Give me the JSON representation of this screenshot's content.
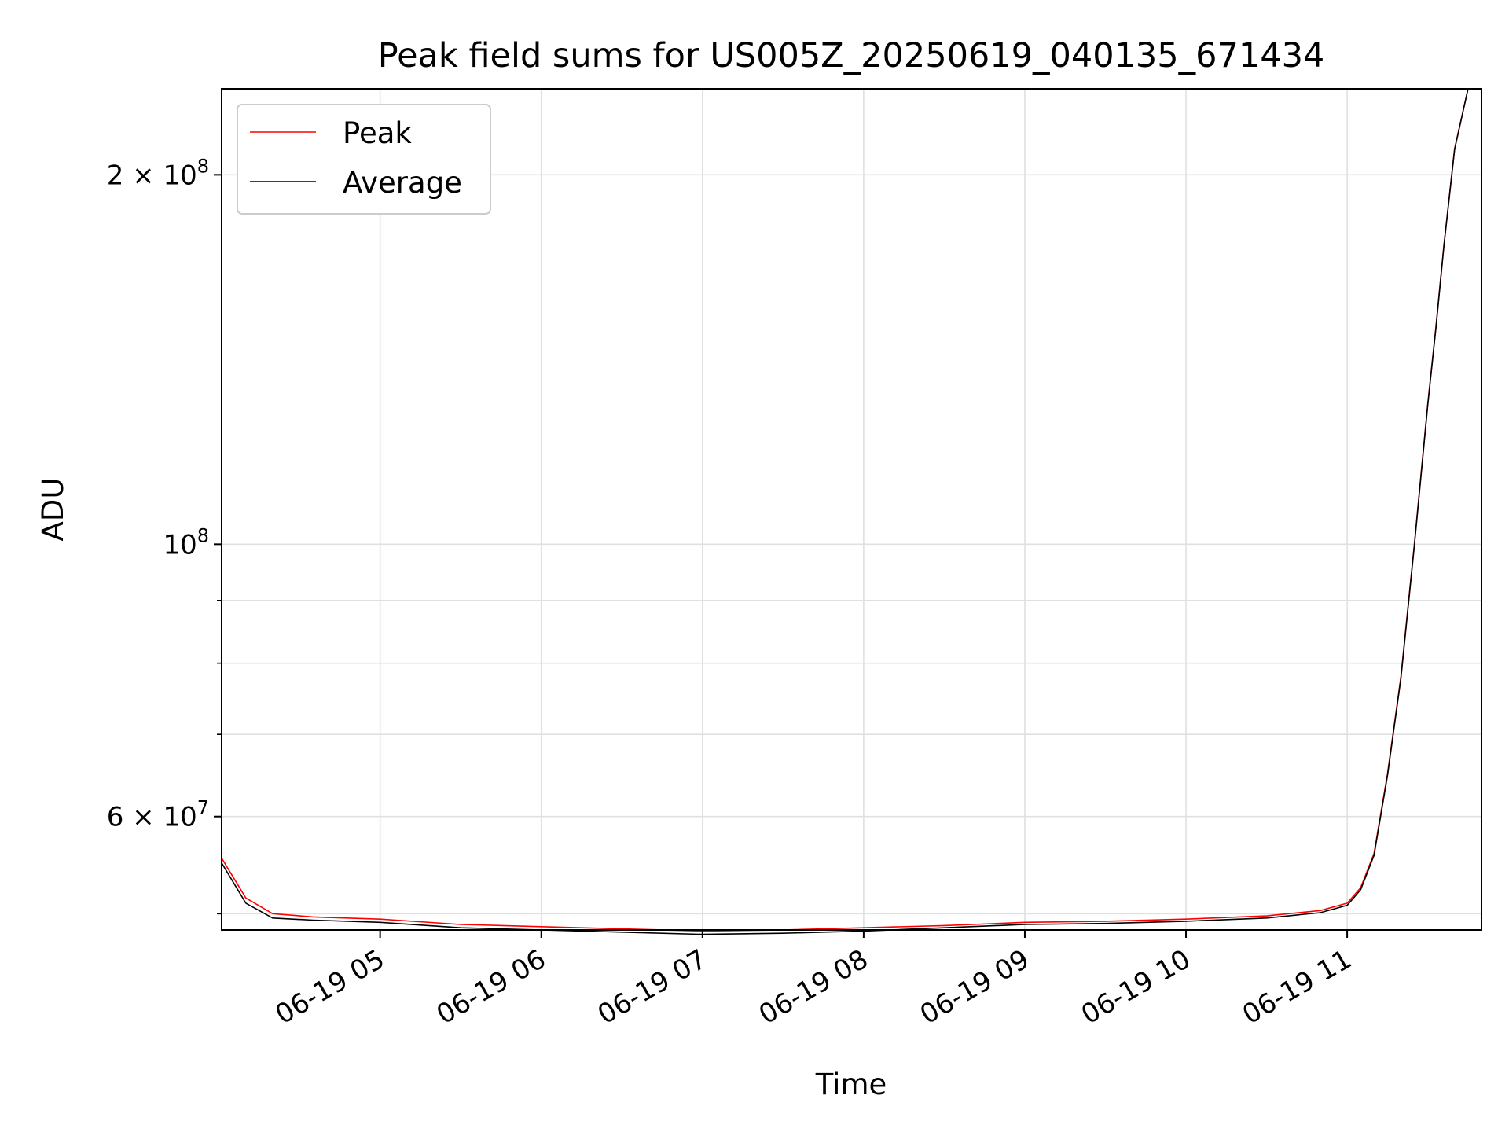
{
  "chart_data": {
    "type": "line",
    "title": "Peak field sums for US005Z_20250619_040135_671434",
    "xlabel": "Time",
    "ylabel": "ADU",
    "x_scale": "time",
    "y_scale": "log",
    "xlim": [
      "2025-06-19 04:01",
      "2025-06-19 11:50"
    ],
    "ylim": [
      48500000,
      235000000
    ],
    "grid": true,
    "legend_position": "upper-left",
    "x_ticks": [
      {
        "t": "2025-06-19 05:00",
        "label": "06-19 05"
      },
      {
        "t": "2025-06-19 06:00",
        "label": "06-19 06"
      },
      {
        "t": "2025-06-19 07:00",
        "label": "06-19 07"
      },
      {
        "t": "2025-06-19 08:00",
        "label": "06-19 08"
      },
      {
        "t": "2025-06-19 09:00",
        "label": "06-19 09"
      },
      {
        "t": "2025-06-19 10:00",
        "label": "06-19 10"
      },
      {
        "t": "2025-06-19 11:00",
        "label": "06-19 11"
      }
    ],
    "y_ticks_major": [
      {
        "value": 60000000,
        "base": "6 × 10",
        "exp": "7"
      },
      {
        "value": 100000000,
        "base": "10",
        "exp": "8"
      },
      {
        "value": 200000000,
        "base": "2 × 10",
        "exp": "8"
      }
    ],
    "y_ticks_minor": [
      50000000,
      70000000,
      80000000,
      90000000,
      300000000
    ],
    "series": [
      {
        "name": "Peak",
        "color": "#ff0000",
        "x": [
          "2025-06-19 04:01",
          "2025-06-19 04:10",
          "2025-06-19 04:20",
          "2025-06-19 04:35",
          "2025-06-19 05:00",
          "2025-06-19 05:30",
          "2025-06-19 06:00",
          "2025-06-19 06:30",
          "2025-06-19 07:00",
          "2025-06-19 07:30",
          "2025-06-19 08:00",
          "2025-06-19 08:30",
          "2025-06-19 09:00",
          "2025-06-19 09:30",
          "2025-06-19 10:00",
          "2025-06-19 10:30",
          "2025-06-19 10:50",
          "2025-06-19 11:00",
          "2025-06-19 11:05",
          "2025-06-19 11:10",
          "2025-06-19 11:15",
          "2025-06-19 11:20",
          "2025-06-19 11:25",
          "2025-06-19 11:30",
          "2025-06-19 11:33",
          "2025-06-19 11:36",
          "2025-06-19 11:40",
          "2025-06-19 11:45"
        ],
        "y": [
          55500000,
          51500000,
          50000000,
          49700000,
          49500000,
          49000000,
          48800000,
          48600000,
          48400000,
          48500000,
          48700000,
          48900000,
          49200000,
          49300000,
          49500000,
          49800000,
          50300000,
          51000000,
          52500000,
          56000000,
          65000000,
          78000000,
          100000000,
          130000000,
          150000000,
          175000000,
          210000000,
          235000000
        ]
      },
      {
        "name": "Average",
        "color": "#000000",
        "x": [
          "2025-06-19 04:01",
          "2025-06-19 04:10",
          "2025-06-19 04:20",
          "2025-06-19 04:35",
          "2025-06-19 05:00",
          "2025-06-19 05:30",
          "2025-06-19 06:00",
          "2025-06-19 06:30",
          "2025-06-19 07:00",
          "2025-06-19 07:30",
          "2025-06-19 08:00",
          "2025-06-19 08:30",
          "2025-06-19 09:00",
          "2025-06-19 09:30",
          "2025-06-19 10:00",
          "2025-06-19 10:30",
          "2025-06-19 10:50",
          "2025-06-19 11:00",
          "2025-06-19 11:05",
          "2025-06-19 11:10",
          "2025-06-19 11:15",
          "2025-06-19 11:20",
          "2025-06-19 11:25",
          "2025-06-19 11:30",
          "2025-06-19 11:33",
          "2025-06-19 11:36",
          "2025-06-19 11:40",
          "2025-06-19 11:45"
        ],
        "y": [
          55000000,
          51000000,
          49600000,
          49400000,
          49200000,
          48700000,
          48500000,
          48300000,
          48100000,
          48200000,
          48400000,
          48700000,
          49000000,
          49100000,
          49300000,
          49600000,
          50100000,
          50800000,
          52300000,
          55800000,
          64800000,
          77800000,
          99800000,
          129800000,
          149800000,
          174800000,
          209800000,
          235000000
        ]
      }
    ]
  }
}
